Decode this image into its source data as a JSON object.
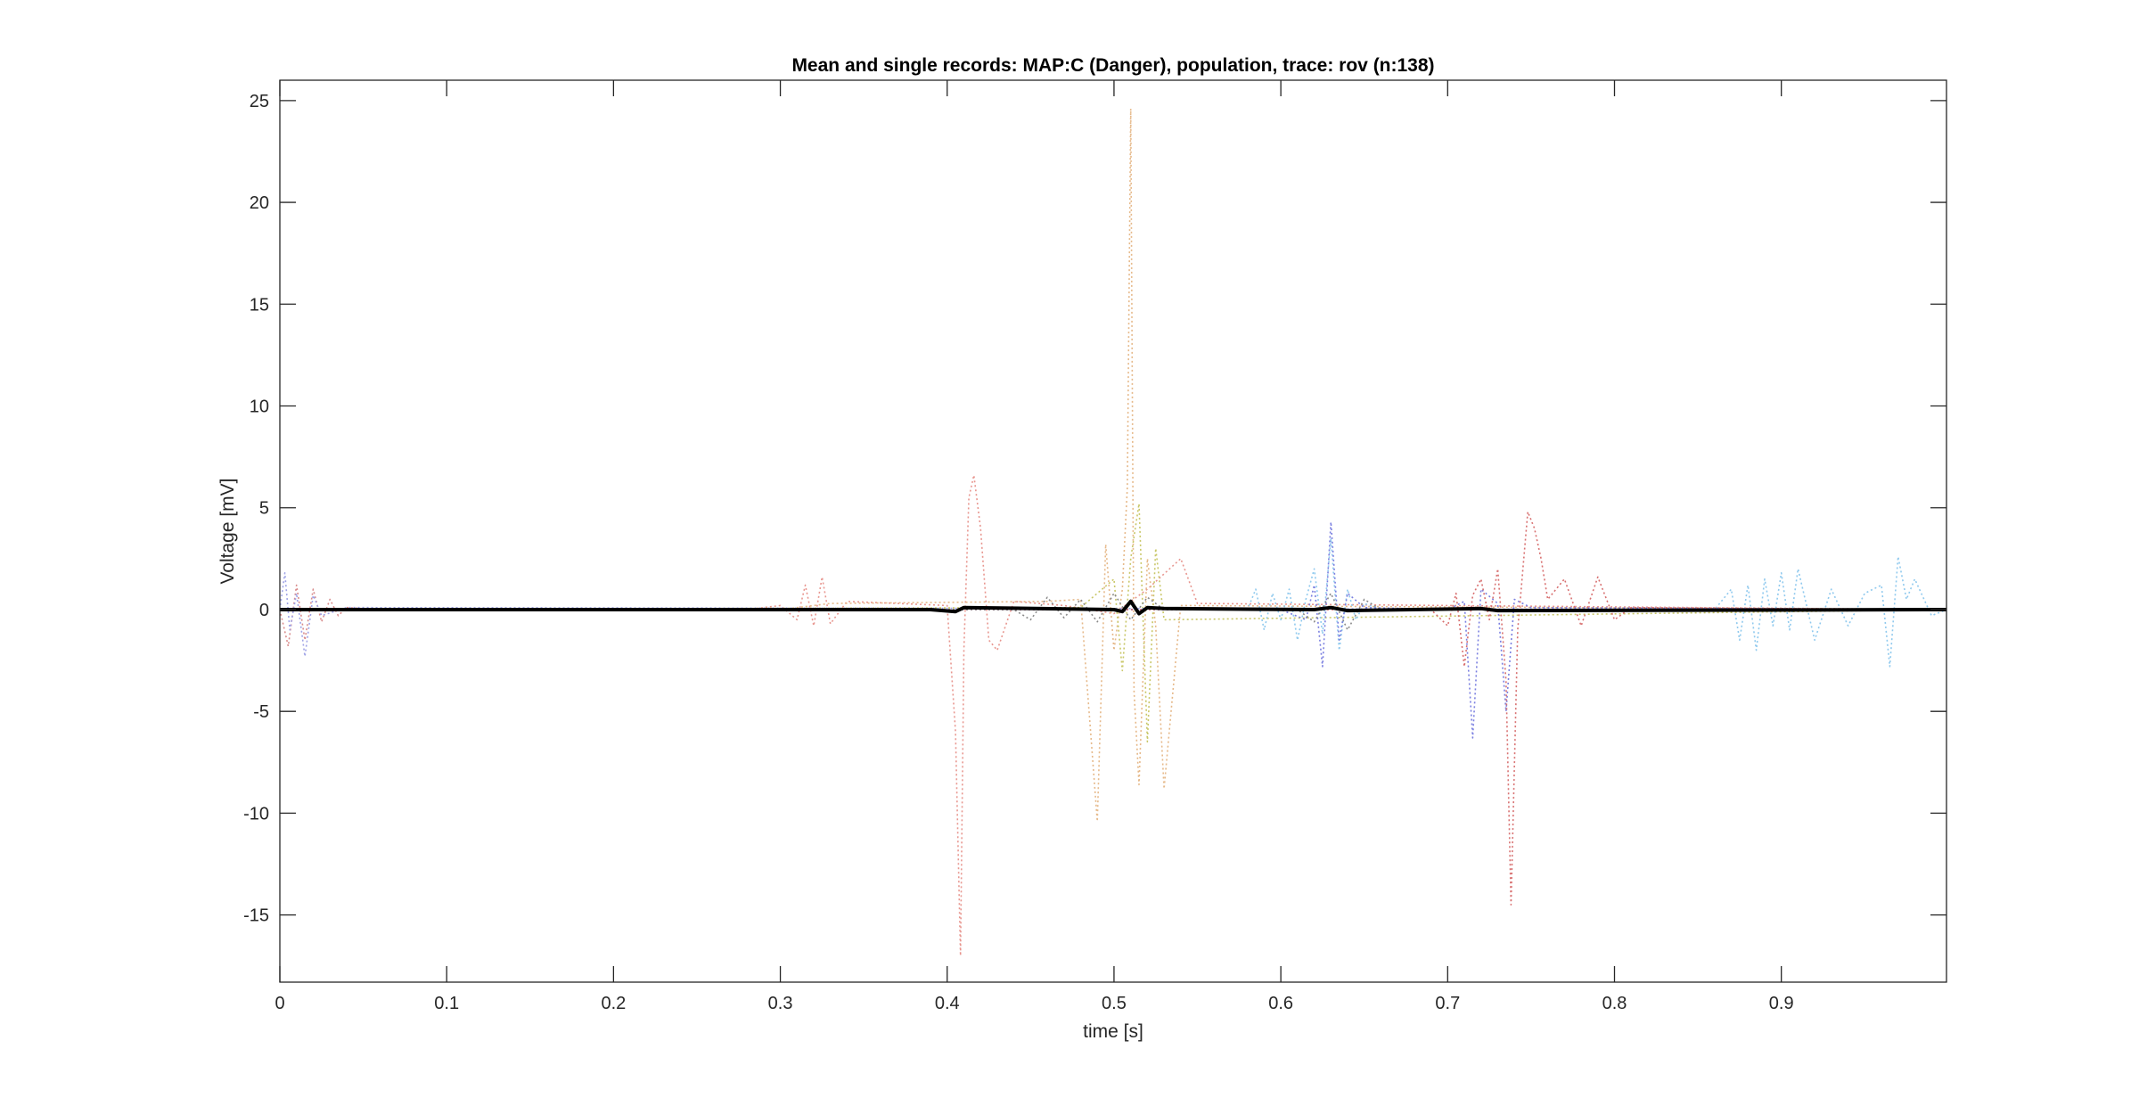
{
  "chart_data": {
    "type": "line",
    "title": "Mean and single records: MAP:C (Danger), population, trace: rov (n:138)",
    "xlabel": "time [s]",
    "ylabel": "Voltage [mV]",
    "xlim": [
      0,
      0.999
    ],
    "ylim": [
      -18.3,
      26.0
    ],
    "xticks": [
      0,
      0.1,
      0.2,
      0.3,
      0.4,
      0.5,
      0.6,
      0.7,
      0.8,
      0.9
    ],
    "xtick_labels": [
      "0",
      "0.1",
      "0.2",
      "0.3",
      "0.4",
      "0.5",
      "0.6",
      "0.7",
      "0.8",
      "0.9"
    ],
    "yticks": [
      -15,
      -10,
      -5,
      0,
      5,
      10,
      15,
      20,
      25
    ],
    "ytick_labels": [
      "-15",
      "-10",
      "-5",
      "0",
      "5",
      "10",
      "15",
      "20",
      "25"
    ],
    "grid": false,
    "legend": "none",
    "series": [
      {
        "color": "#e8968f",
        "style": "dotted",
        "x": [
          0.0,
          0.28,
          0.3,
          0.31,
          0.315,
          0.32,
          0.325,
          0.33,
          0.34,
          0.4,
          0.405,
          0.408,
          0.41,
          0.413,
          0.416,
          0.42,
          0.425,
          0.43,
          0.44,
          0.47,
          0.5,
          0.52,
          0.54,
          0.55,
          0.999
        ],
        "y": [
          0.0,
          0.0,
          0.2,
          -0.5,
          1.2,
          -0.8,
          1.6,
          -0.7,
          0.4,
          0.2,
          -6.0,
          -17.0,
          -2.0,
          5.5,
          6.6,
          4.0,
          -1.5,
          -2.0,
          0.4,
          0.2,
          -0.2,
          1.0,
          2.5,
          0.3,
          0.0
        ]
      },
      {
        "color": "#e6b98a",
        "style": "dotted",
        "x": [
          0.0,
          0.3,
          0.33,
          0.46,
          0.48,
          0.49,
          0.495,
          0.5,
          0.505,
          0.508,
          0.51,
          0.512,
          0.515,
          0.52,
          0.525,
          0.53,
          0.54,
          0.999
        ],
        "y": [
          0.0,
          0.0,
          0.3,
          0.4,
          0.5,
          -10.4,
          3.2,
          -2.0,
          1.0,
          6.0,
          24.6,
          -4.0,
          -8.6,
          2.5,
          -0.8,
          -8.8,
          0.2,
          0.0
        ]
      },
      {
        "color": "#c9c768",
        "style": "dotted",
        "x": [
          0.0,
          0.48,
          0.5,
          0.505,
          0.51,
          0.515,
          0.52,
          0.525,
          0.53,
          0.999
        ],
        "y": [
          0.0,
          0.1,
          1.5,
          -3.0,
          2.5,
          5.2,
          -6.5,
          3.0,
          -0.5,
          0.0
        ]
      },
      {
        "color": "#d98c8c",
        "style": "dotted",
        "x": [
          0.0,
          0.005,
          0.01,
          0.015,
          0.02,
          0.025,
          0.03,
          0.035,
          0.04,
          0.06,
          0.999
        ],
        "y": [
          0.0,
          -1.8,
          1.2,
          -1.5,
          1.0,
          -0.6,
          0.5,
          -0.3,
          0.1,
          0.0,
          0.0
        ]
      },
      {
        "color": "#9fa3e6",
        "style": "dotted",
        "x": [
          0.0,
          0.003,
          0.006,
          0.01,
          0.015,
          0.02,
          0.025,
          0.04,
          0.999
        ],
        "y": [
          0.0,
          1.8,
          -1.0,
          0.8,
          -2.3,
          0.7,
          -0.3,
          0.1,
          0.0
        ]
      },
      {
        "color": "#8fc9ee",
        "style": "dotted",
        "x": [
          0.0,
          0.58,
          0.585,
          0.59,
          0.595,
          0.6,
          0.605,
          0.61,
          0.615,
          0.62,
          0.625,
          0.63,
          0.635,
          0.64,
          0.645,
          0.65,
          0.66,
          0.86,
          0.87,
          0.875,
          0.88,
          0.885,
          0.89,
          0.895,
          0.9,
          0.905,
          0.91,
          0.92,
          0.93,
          0.94,
          0.95,
          0.96,
          0.965,
          0.97,
          0.975,
          0.98,
          0.99,
          0.999
        ],
        "y": [
          0.0,
          0.0,
          1.0,
          -1.0,
          0.8,
          -0.5,
          1.0,
          -1.5,
          0.5,
          2.0,
          -1.2,
          3.5,
          -2.0,
          1.0,
          -0.5,
          0.3,
          0.0,
          0.0,
          1.0,
          -1.5,
          1.2,
          -2.0,
          1.5,
          -0.8,
          1.8,
          -1.0,
          2.0,
          -1.5,
          1.0,
          -0.8,
          0.8,
          1.2,
          -2.8,
          2.6,
          0.5,
          1.5,
          -0.3,
          0.0
        ]
      },
      {
        "color": "#7a7fe0",
        "style": "dotted",
        "x": [
          0.0,
          0.6,
          0.615,
          0.62,
          0.625,
          0.63,
          0.635,
          0.64,
          0.65,
          0.7,
          0.71,
          0.715,
          0.72,
          0.73,
          0.735,
          0.74,
          0.75,
          0.999
        ],
        "y": [
          0.0,
          0.0,
          -0.5,
          1.2,
          -2.8,
          4.3,
          -1.5,
          0.8,
          0.1,
          0.0,
          0.4,
          -6.3,
          1.0,
          0.3,
          -5.0,
          0.5,
          0.1,
          0.0
        ]
      },
      {
        "color": "#d87070",
        "style": "dotted",
        "x": [
          0.0,
          0.69,
          0.7,
          0.705,
          0.71,
          0.715,
          0.72,
          0.725,
          0.73,
          0.735,
          0.738,
          0.742,
          0.748,
          0.752,
          0.756,
          0.76,
          0.77,
          0.78,
          0.79,
          0.8,
          0.81,
          0.999
        ],
        "y": [
          0.0,
          0.0,
          -0.8,
          0.8,
          -2.8,
          0.7,
          1.5,
          -0.5,
          2.0,
          -3.5,
          -14.5,
          -1.0,
          4.8,
          4.0,
          2.5,
          0.5,
          1.5,
          -0.8,
          1.6,
          -0.5,
          0.1,
          0.0
        ]
      },
      {
        "color": "#8a8a8a",
        "style": "dotted",
        "x": [
          0.0,
          0.44,
          0.45,
          0.46,
          0.47,
          0.48,
          0.49,
          0.5,
          0.51,
          0.52,
          0.53,
          0.61,
          0.62,
          0.63,
          0.64,
          0.65,
          0.66,
          0.999
        ],
        "y": [
          0.0,
          0.0,
          -0.5,
          0.6,
          -0.4,
          0.5,
          -0.6,
          0.8,
          -0.5,
          0.6,
          0.0,
          0.0,
          -0.6,
          0.8,
          -1.0,
          0.5,
          0.0,
          0.0
        ]
      },
      {
        "color": "#000000",
        "style": "solid",
        "x": [
          0.0,
          0.39,
          0.405,
          0.41,
          0.5,
          0.505,
          0.51,
          0.515,
          0.52,
          0.53,
          0.62,
          0.63,
          0.64,
          0.72,
          0.73,
          0.999
        ],
        "y": [
          0.0,
          0.0,
          -0.1,
          0.1,
          0.0,
          -0.1,
          0.4,
          -0.2,
          0.1,
          0.05,
          0.0,
          0.1,
          -0.05,
          0.05,
          -0.05,
          0.0
        ]
      }
    ]
  }
}
